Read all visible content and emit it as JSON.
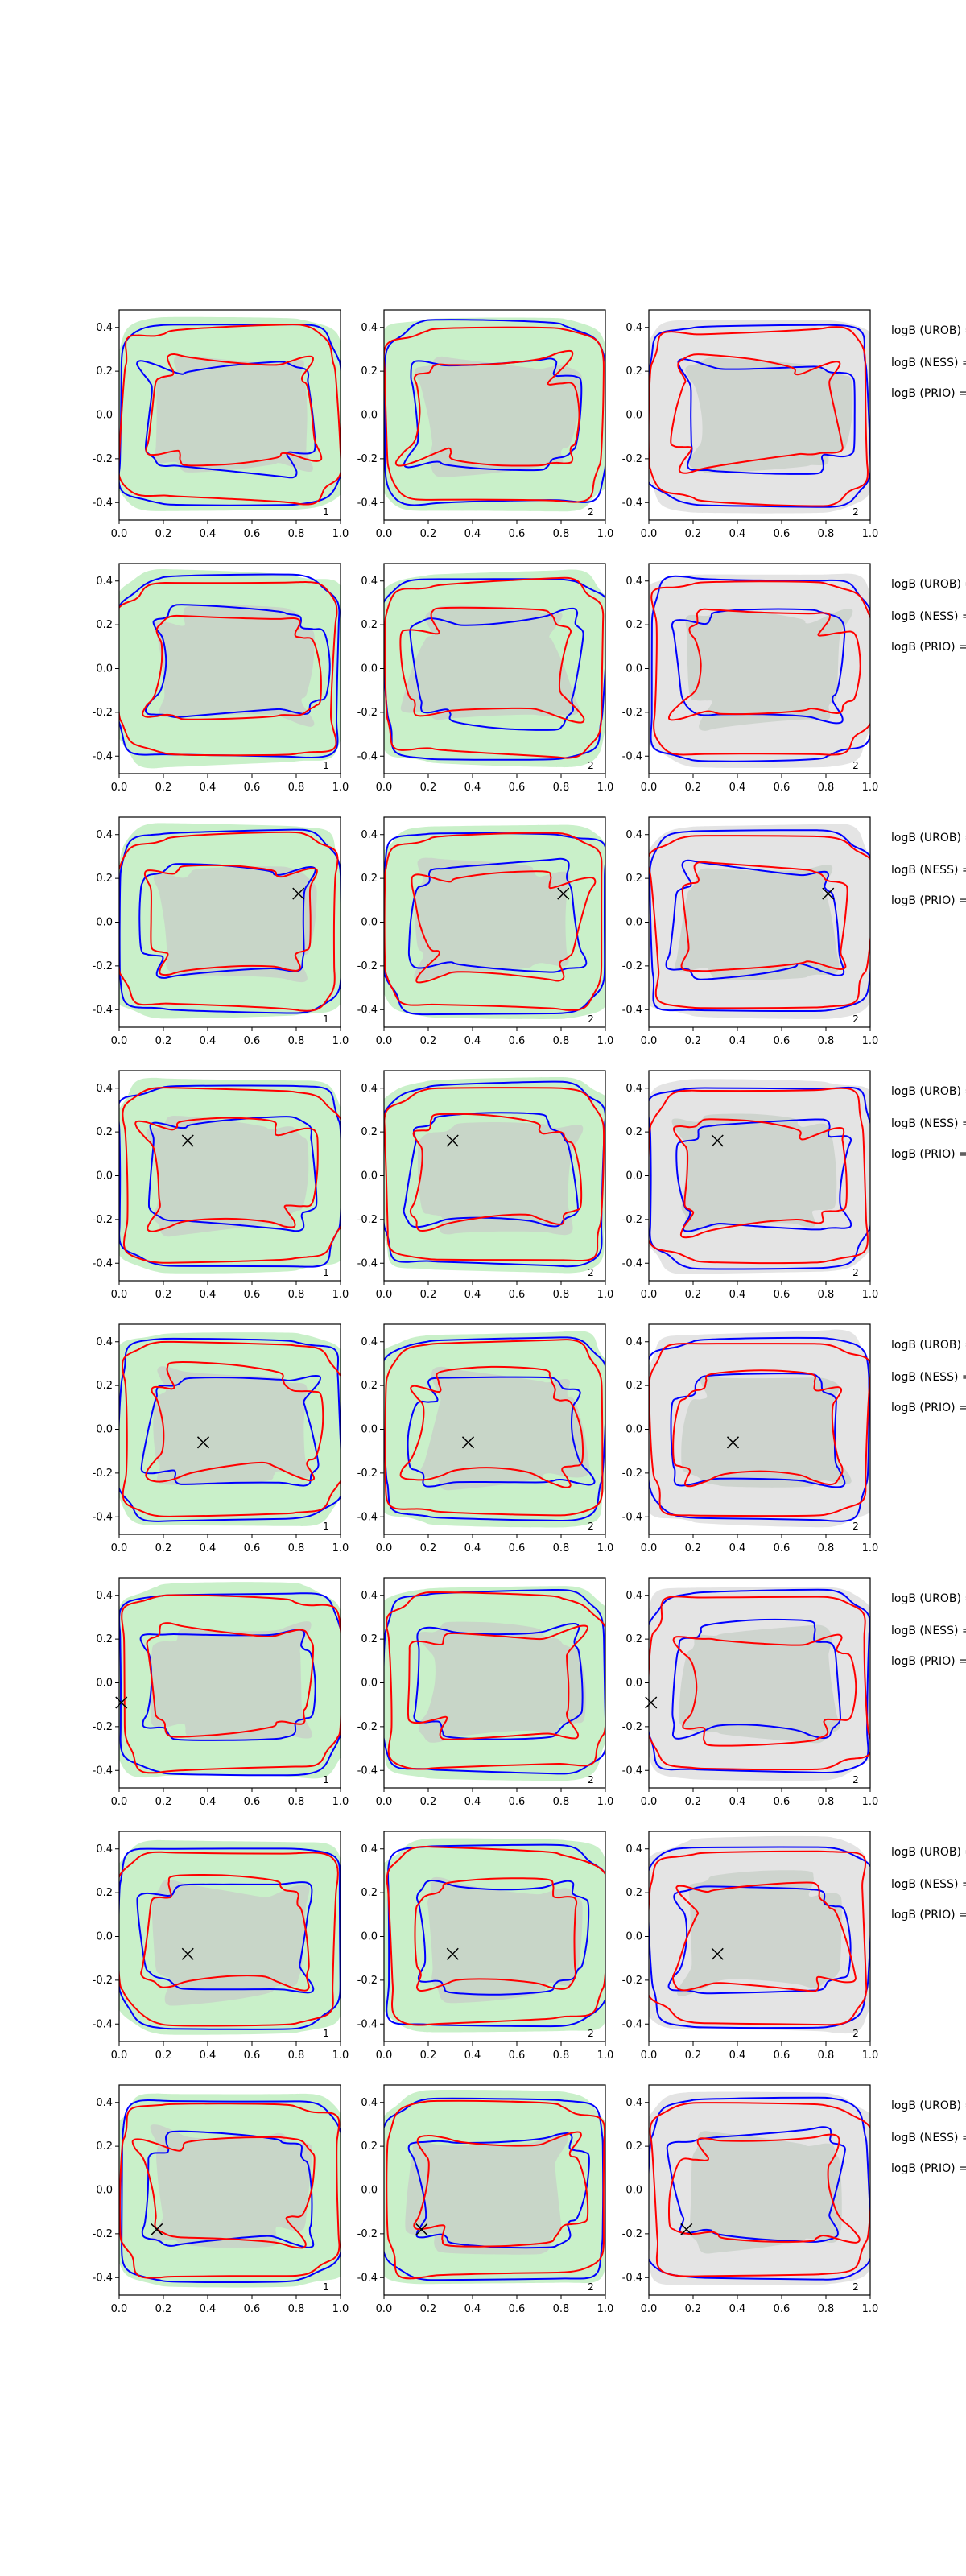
{
  "chart_data": {
    "type": "contour",
    "grid": false,
    "xlim": [
      0.0,
      1.0
    ],
    "ylim": [
      -0.48,
      0.48
    ],
    "xticks": [
      "0.0",
      "0.2",
      "0.4",
      "0.6",
      "0.8",
      "1.0"
    ],
    "yticks": [
      "0.4",
      "0.2",
      "0.0",
      "-0.2",
      "-0.4"
    ],
    "colors": {
      "blue_contour": "#0000ff",
      "red_contour": "#ff0000",
      "green_fill": "#c9f0c9",
      "gray_fill": "#e4e4e4",
      "inner_fill": "#c8cfc8",
      "marker": "#000000"
    },
    "row_labels": [
      "logB (UROB) =",
      "logB (NESS) =",
      "logB (PRIO) ="
    ],
    "rows": [
      {
        "panels": [
          {
            "fill": "green",
            "corner_label": "1",
            "marker": null
          },
          {
            "fill": "green",
            "corner_label": "2",
            "marker": null
          },
          {
            "fill": "gray",
            "corner_label": "2",
            "marker": null
          }
        ]
      },
      {
        "panels": [
          {
            "fill": "green",
            "corner_label": "1",
            "marker": null
          },
          {
            "fill": "green",
            "corner_label": "2",
            "marker": null
          },
          {
            "fill": "gray",
            "corner_label": "2",
            "marker": null
          }
        ]
      },
      {
        "panels": [
          {
            "fill": "green",
            "corner_label": "1",
            "marker": {
              "x": 0.81,
              "y": 0.13
            }
          },
          {
            "fill": "green",
            "corner_label": "2",
            "marker": {
              "x": 0.81,
              "y": 0.13
            }
          },
          {
            "fill": "gray",
            "corner_label": "2",
            "marker": {
              "x": 0.81,
              "y": 0.13
            }
          }
        ]
      },
      {
        "panels": [
          {
            "fill": "green",
            "corner_label": "1",
            "marker": {
              "x": 0.31,
              "y": 0.16
            }
          },
          {
            "fill": "green",
            "corner_label": "2",
            "marker": {
              "x": 0.31,
              "y": 0.16
            }
          },
          {
            "fill": "gray",
            "corner_label": "2",
            "marker": {
              "x": 0.31,
              "y": 0.16
            }
          }
        ]
      },
      {
        "panels": [
          {
            "fill": "green",
            "corner_label": "1",
            "marker": {
              "x": 0.38,
              "y": -0.06
            }
          },
          {
            "fill": "green",
            "corner_label": "2",
            "marker": {
              "x": 0.38,
              "y": -0.06
            }
          },
          {
            "fill": "gray",
            "corner_label": "2",
            "marker": {
              "x": 0.38,
              "y": -0.06
            }
          }
        ]
      },
      {
        "panels": [
          {
            "fill": "green",
            "corner_label": "1",
            "marker": {
              "x": 0.01,
              "y": -0.09
            }
          },
          {
            "fill": "green",
            "corner_label": "2",
            "marker": null
          },
          {
            "fill": "gray",
            "corner_label": "2",
            "marker": {
              "x": 0.01,
              "y": -0.09
            }
          }
        ]
      },
      {
        "panels": [
          {
            "fill": "green",
            "corner_label": "1",
            "marker": {
              "x": 0.31,
              "y": -0.08
            }
          },
          {
            "fill": "green",
            "corner_label": "2",
            "marker": {
              "x": 0.31,
              "y": -0.08
            }
          },
          {
            "fill": "gray",
            "corner_label": "2",
            "marker": {
              "x": 0.31,
              "y": -0.08
            }
          }
        ]
      },
      {
        "panels": [
          {
            "fill": "green",
            "corner_label": "1",
            "marker": {
              "x": 0.17,
              "y": -0.18
            }
          },
          {
            "fill": "green",
            "corner_label": "2",
            "marker": {
              "x": 0.17,
              "y": -0.18
            }
          },
          {
            "fill": "gray",
            "corner_label": "2",
            "marker": {
              "x": 0.17,
              "y": -0.18
            }
          }
        ]
      }
    ]
  }
}
